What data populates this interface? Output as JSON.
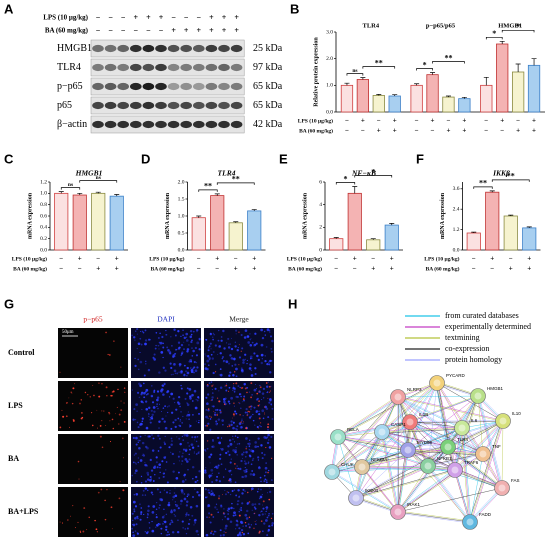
{
  "panel_labels": [
    "A",
    "B",
    "C",
    "D",
    "E",
    "F",
    "G",
    "H"
  ],
  "blot": {
    "treatments": [
      {
        "label": "LPS (10 μg/kg)",
        "signs": [
          "−",
          "−",
          "−",
          "+",
          "+",
          "+",
          "−",
          "−",
          "−",
          "+",
          "+",
          "+"
        ]
      },
      {
        "label": "BA (60 mg/kg)",
        "signs": [
          "−",
          "−",
          "−",
          "−",
          "−",
          "−",
          "+",
          "+",
          "+",
          "+",
          "+",
          "+"
        ]
      }
    ],
    "proteins": [
      {
        "name": "HMGB1",
        "size": "25 kDa"
      },
      {
        "name": "TLR4",
        "size": "97 kDa"
      },
      {
        "name": "p−p65",
        "size": "65 kDa"
      },
      {
        "name": "p65",
        "size": "65 kDa"
      },
      {
        "name": "β−actin",
        "size": "42 kDa"
      }
    ]
  },
  "treatments": [
    {
      "label": "LPS (10 μg/kg)",
      "signs": [
        "−",
        "+",
        "−",
        "+"
      ]
    },
    {
      "label": "BA (60 mg/kg)",
      "signs": [
        "−",
        "−",
        "+",
        "+"
      ]
    }
  ],
  "colors": [
    "#fbe1e1",
    "#f4b3b3",
    "#f6f3cf",
    "#a8cff0"
  ],
  "edge_colors": [
    "#d04040",
    "#c03030",
    "#8a8a40",
    "#3a7fc8"
  ],
  "chart_b": {
    "type": "bar",
    "ylabel": "Relative protein expression",
    "ylim": [
      0,
      3
    ],
    "yticks": [
      {
        "value": 0,
        "label": "0.0"
      },
      {
        "value": 1,
        "label": "1.0"
      },
      {
        "value": 2,
        "label": "2.0"
      },
      {
        "value": 3,
        "label": "3.0"
      }
    ],
    "groups": [
      {
        "title": "TLR4",
        "values": [
          1.0,
          1.22,
          0.62,
          0.6
        ],
        "errors": [
          0.08,
          0.07,
          0.04,
          0.05
        ],
        "significance": [
          "ns",
          "**"
        ]
      },
      {
        "title": "p−p65/p65",
        "values": [
          1.0,
          1.4,
          0.56,
          0.5
        ],
        "errors": [
          0.06,
          0.08,
          0.04,
          0.05
        ],
        "significance": [
          "*",
          "**"
        ]
      },
      {
        "title": "HMGB1",
        "values": [
          1.0,
          2.55,
          1.5,
          1.75
        ],
        "errors": [
          0.3,
          0.1,
          0.3,
          0.25
        ],
        "significance": [
          "*",
          "*"
        ]
      }
    ]
  },
  "charts": [
    {
      "type": "bar",
      "title": "HMGB1",
      "ylabel": "mRNA expression",
      "ylim": [
        0,
        1.2
      ],
      "yticks": [
        {
          "value": 0,
          "label": "0.0"
        },
        0.2,
        0.4,
        0.6,
        0.8,
        {
          "value": 1,
          "label": "1.0"
        },
        1.2
      ],
      "values": [
        1.0,
        0.97,
        1.0,
        0.95
      ],
      "errors": [
        0.03,
        0.03,
        0.02,
        0.03
      ],
      "significance": [
        "ns",
        "ns"
      ]
    },
    {
      "type": "bar",
      "title": "TLR4",
      "ylabel": "mRNA expression",
      "ylim": [
        0,
        2
      ],
      "yticks": [
        {
          "value": 0,
          "label": "0.0"
        },
        0.5,
        {
          "value": 1,
          "label": "1.0"
        },
        1.5,
        {
          "value": 2,
          "label": "2.0"
        }
      ],
      "values": [
        0.95,
        1.6,
        0.8,
        1.15
      ],
      "errors": [
        0.05,
        0.05,
        0.03,
        0.04
      ],
      "significance": [
        "**",
        "**"
      ]
    },
    {
      "type": "bar",
      "title": "NF−κB",
      "ylabel": "mRNA expression",
      "ylim": [
        0,
        6
      ],
      "yticks": [
        0,
        2,
        4,
        6
      ],
      "values": [
        1.0,
        5.0,
        0.9,
        2.2
      ],
      "errors": [
        0.1,
        0.6,
        0.1,
        0.15
      ],
      "significance": [
        "*",
        "*"
      ]
    },
    {
      "type": "bar",
      "title": "IKKβ",
      "ylabel": "mRNA expression",
      "ylim": [
        0,
        4
      ],
      "yticks": [
        {
          "value": 0,
          "label": "0.0"
        },
        1.2,
        2.4,
        3.6
      ],
      "values": [
        1.0,
        3.4,
        2.0,
        1.3
      ],
      "errors": [
        0.05,
        0.08,
        0.05,
        0.06
      ],
      "significance": [
        "**",
        "**"
      ]
    }
  ],
  "micro": {
    "columns": [
      "p−p65",
      "DAPI",
      "Merge"
    ],
    "rows": [
      "Control",
      "LPS",
      "BA",
      "BA+LPS"
    ],
    "scale": "50μm"
  },
  "network": {
    "legend": [
      {
        "label": "from curated databases",
        "color": "#1fc3e8"
      },
      {
        "label": "experimentally determined",
        "color": "#c43cc4"
      },
      {
        "label": "textmining",
        "color": "#b3c23a"
      },
      {
        "label": "co-expression",
        "color": "#222222"
      },
      {
        "label": "protein homology",
        "color": "#9aa0ff"
      }
    ],
    "nodes": [
      "PYCARD",
      "NLRP3",
      "HMGB1",
      "IL10",
      "IL1B",
      "CASP1",
      "IL6",
      "RELA",
      "TLR4",
      "NFKB1",
      "MYD88",
      "TRAF6",
      "NFKBIA",
      "CHUK",
      "IKBKB",
      "IRAK1",
      "TNF",
      "FADD",
      "FAS"
    ]
  }
}
